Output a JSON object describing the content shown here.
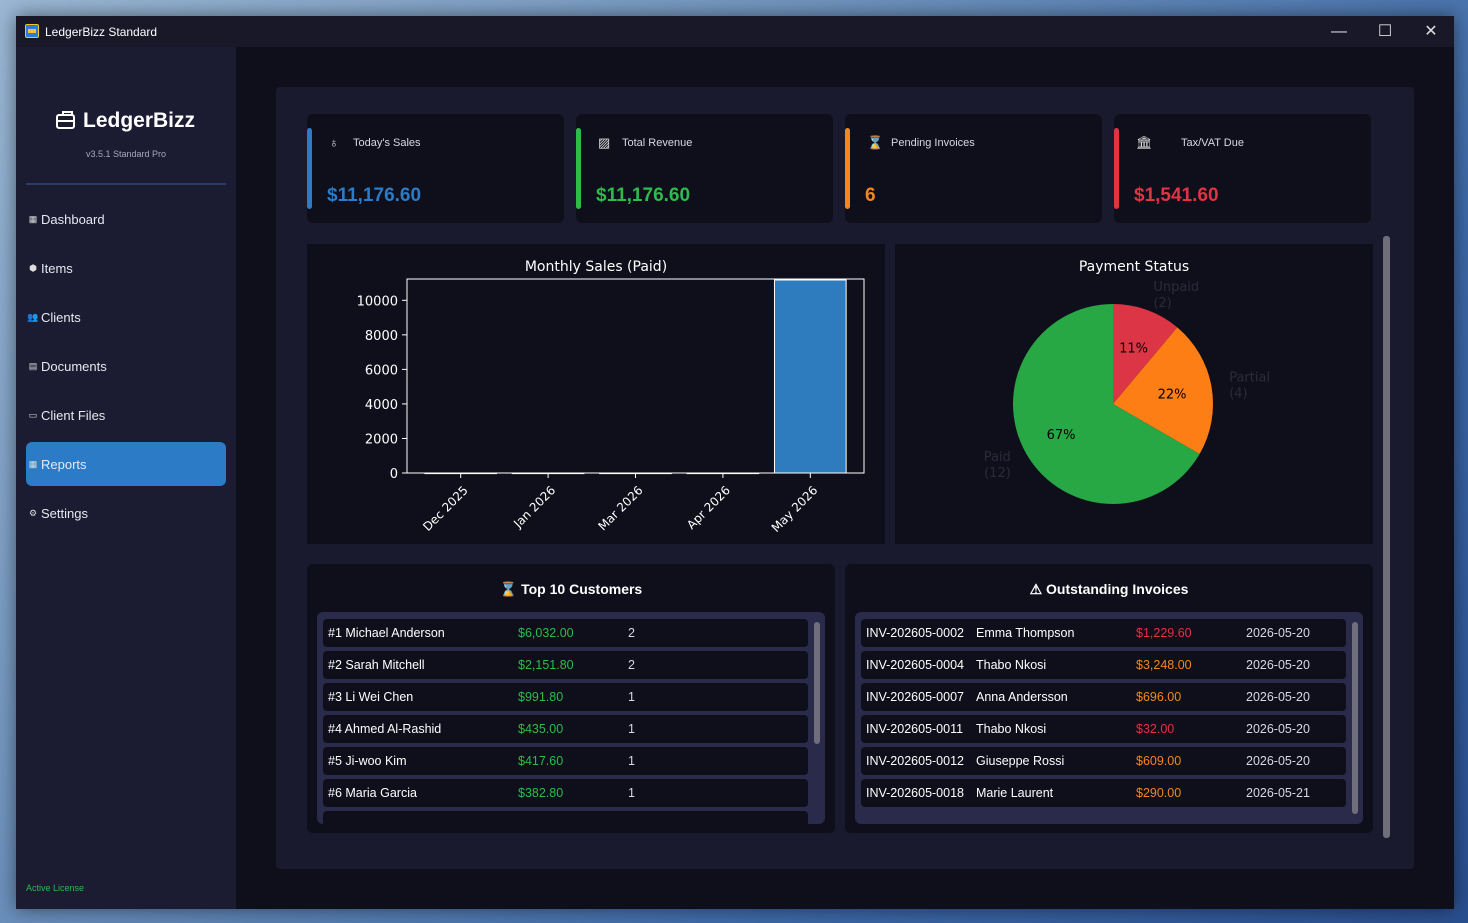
{
  "window": {
    "title": "LedgerBizz Standard",
    "min": "—",
    "max": "☐",
    "close": "✕"
  },
  "sidebar": {
    "logo": "LedgerBizz",
    "version": "v3.5.1 Standard Pro",
    "items": [
      {
        "label": "Dashboard",
        "icon": "dashboard-icon",
        "glyph": "▦",
        "active": false
      },
      {
        "label": "Items",
        "icon": "box-icon",
        "glyph": "⬢",
        "active": false
      },
      {
        "label": "Clients",
        "icon": "users-icon",
        "glyph": "👥",
        "active": false
      },
      {
        "label": "Documents",
        "icon": "document-icon",
        "glyph": "▤",
        "active": false
      },
      {
        "label": "Client Files",
        "icon": "folder-icon",
        "glyph": "▭",
        "active": false
      },
      {
        "label": "Reports",
        "icon": "chart-icon",
        "glyph": "▦",
        "active": true
      },
      {
        "label": "Settings",
        "icon": "gear-icon",
        "glyph": "⚙",
        "active": false
      }
    ],
    "license": "Active License"
  },
  "cards": [
    {
      "label": "Today's Sales",
      "value": "$11,176.60",
      "color": "#2b7bc6",
      "icon": "money-bag-icon",
      "glyph": "♁"
    },
    {
      "label": "Total Revenue",
      "value": "$11,176.60",
      "color": "#2dbc4c",
      "icon": "chart-icon",
      "glyph": "▨"
    },
    {
      "label": "Pending Invoices",
      "value": "6",
      "color": "#f5861f",
      "icon": "hourglass-icon",
      "glyph": "⌛"
    },
    {
      "label": "Tax/VAT Due",
      "value": "$1,541.60",
      "color": "#e03344",
      "icon": "bank-icon",
      "glyph": "🏛"
    }
  ],
  "chart_data": [
    {
      "type": "bar",
      "title": "Monthly Sales (Paid)",
      "categories": [
        "Dec 2025",
        "Jan 2026",
        "Mar 2026",
        "Apr 2026",
        "May 2026"
      ],
      "values": [
        0,
        0,
        0,
        0,
        11176.6
      ],
      "ylim": [
        0,
        11176.6
      ],
      "yticks": [
        0,
        2000,
        4000,
        6000,
        8000,
        10000
      ],
      "bar_color": "#2e7bbd"
    },
    {
      "type": "pie",
      "title": "Payment Status",
      "slices": [
        {
          "label": "Unpaid\n(2)",
          "value": 2,
          "pct": "11%",
          "color": "#dc3545"
        },
        {
          "label": "Partial\n(4)",
          "value": 4,
          "pct": "22%",
          "color": "#fd7e14"
        },
        {
          "label": "Paid\n(12)",
          "value": 12,
          "pct": "67%",
          "color": "#28a745"
        }
      ]
    }
  ],
  "customers": {
    "title": "Top 10 Customers",
    "icon": "trophy-icon",
    "rows": [
      {
        "name": "#1 Michael Anderson",
        "amount": "$6,032.00",
        "count": "2"
      },
      {
        "name": "#2 Sarah Mitchell",
        "amount": "$2,151.80",
        "count": "2"
      },
      {
        "name": "#3 Li Wei Chen",
        "amount": "$991.80",
        "count": "1"
      },
      {
        "name": "#4 Ahmed Al-Rashid",
        "amount": "$435.00",
        "count": "1"
      },
      {
        "name": "#5 Ji-woo Kim",
        "amount": "$417.60",
        "count": "1"
      },
      {
        "name": "#6 Maria Garcia",
        "amount": "$382.80",
        "count": "1"
      }
    ]
  },
  "invoices": {
    "title": "Outstanding Invoices",
    "icon": "warning-icon",
    "rows": [
      {
        "number": "INV-202605-0002",
        "client": "Emma Thompson",
        "amount": "$1,229.60",
        "amount_color": "#e03344",
        "date": "2026-05-20"
      },
      {
        "number": "INV-202605-0004",
        "client": "Thabo Nkosi",
        "amount": "$3,248.00",
        "amount_color": "#f5861f",
        "date": "2026-05-20"
      },
      {
        "number": "INV-202605-0007",
        "client": "Anna Andersson",
        "amount": "$696.00",
        "amount_color": "#f5861f",
        "date": "2026-05-20"
      },
      {
        "number": "INV-202605-0011",
        "client": "Thabo Nkosi",
        "amount": "$32.00",
        "amount_color": "#e03344",
        "date": "2026-05-20"
      },
      {
        "number": "INV-202605-0012",
        "client": "Giuseppe Rossi",
        "amount": "$609.00",
        "amount_color": "#f5861f",
        "date": "2026-05-20"
      },
      {
        "number": "INV-202605-0018",
        "client": "Marie Laurent",
        "amount": "$290.00",
        "amount_color": "#f5861f",
        "date": "2026-05-21"
      }
    ]
  }
}
